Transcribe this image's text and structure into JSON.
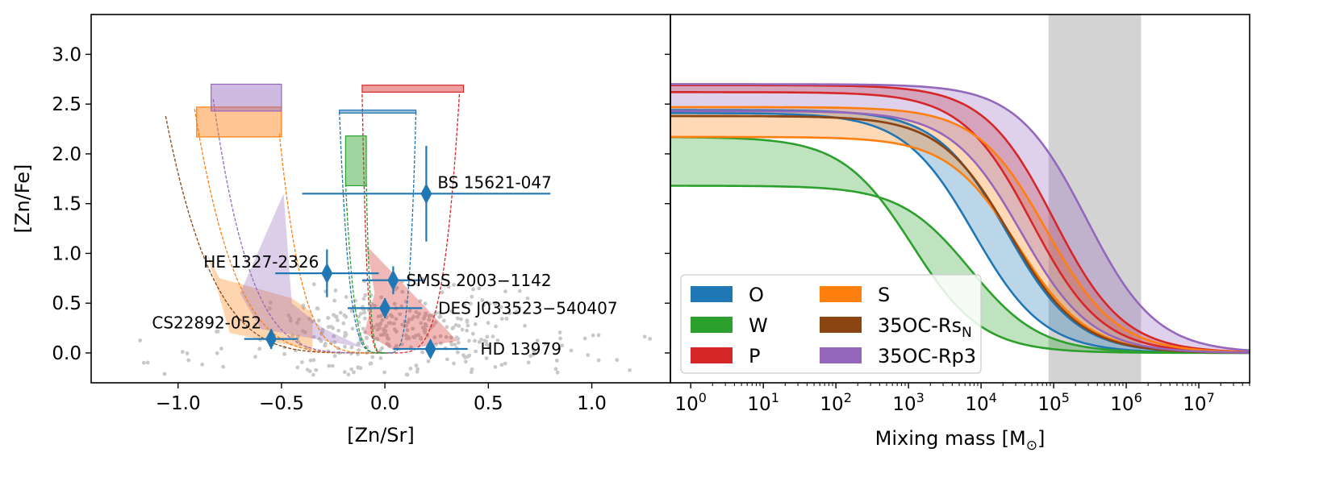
{
  "chart_data": [
    {
      "type": "scatter",
      "panel": "left",
      "xlabel": "[Zn/Sr]",
      "ylabel": "[Zn/Fe]",
      "xlim": [
        -1.42,
        1.38
      ],
      "ylim": [
        -0.3,
        3.4
      ],
      "xticks": [
        -1.0,
        -0.5,
        0.0,
        0.5,
        1.0
      ],
      "xtick_labels": [
        "−1.0",
        "−0.5",
        "0.0",
        "0.5",
        "1.0"
      ],
      "yticks": [
        0.0,
        0.5,
        1.0,
        1.5,
        2.0,
        2.5,
        3.0
      ],
      "ytick_labels": [
        "0.0",
        "0.5",
        "1.0",
        "1.5",
        "2.0",
        "2.5",
        "3.0"
      ],
      "stars": [
        {
          "name": "BS 15621-047",
          "x": 0.2,
          "y": 1.6,
          "xerr": [
            0.6,
            0.6
          ],
          "yerr": [
            0.48,
            0.48
          ]
        },
        {
          "name": "HE 1327-2326",
          "x": -0.28,
          "y": 0.8,
          "xerr": [
            0.25,
            0.25
          ],
          "yerr": [
            0.24,
            0.24
          ]
        },
        {
          "name": "SMSS 2003−1142",
          "x": 0.04,
          "y": 0.73,
          "xerr": [
            0.15,
            0.15
          ],
          "yerr": [
            0.14,
            0.14
          ]
        },
        {
          "name": "DES J033523−540407",
          "x": 0.0,
          "y": 0.45,
          "xerr": [
            0.18,
            0.18
          ],
          "yerr": [
            0.1,
            0.1
          ]
        },
        {
          "name": "CS22892-052",
          "x": -0.55,
          "y": 0.14,
          "xerr": [
            0.13,
            0.13
          ],
          "yerr": [
            0.1,
            0.1
          ]
        },
        {
          "name": "HD 13979",
          "x": 0.22,
          "y": 0.04,
          "xerr": [
            0.18,
            0.18
          ],
          "yerr": [
            0.08,
            0.08
          ]
        }
      ],
      "yield_bands": [
        {
          "model": "O",
          "x0": -0.22,
          "x1": 0.15,
          "y0": 2.41,
          "y1": 2.44
        },
        {
          "model": "W",
          "x0": -0.19,
          "x1": -0.09,
          "y0": 1.68,
          "y1": 2.18
        },
        {
          "model": "P",
          "x0": -0.11,
          "x1": 0.38,
          "y0": 2.62,
          "y1": 2.69
        },
        {
          "model": "S",
          "x0": -0.91,
          "x1": -0.5,
          "y0": 2.17,
          "y1": 2.47
        },
        {
          "model": "35OC-Rp3",
          "x0": -0.84,
          "x1": -0.5,
          "y0": 2.43,
          "y1": 2.7
        }
      ],
      "dilution_curves": [
        {
          "model": "35OC-RsN",
          "x_start": -1.06,
          "y_start": 2.38
        },
        {
          "model": "S",
          "x_start": -0.92,
          "y_start": 2.45
        },
        {
          "model": "35OC-Rp3",
          "x_start": -0.83,
          "y_start": 2.55
        },
        {
          "model": "S",
          "x_start": -0.51,
          "y_start": 2.2
        },
        {
          "model": "P",
          "x_start": -0.11,
          "y_start": 2.6
        },
        {
          "model": "P",
          "x_start": 0.36,
          "y_start": 2.6
        },
        {
          "model": "O",
          "x_start": -0.22,
          "y_start": 2.42
        },
        {
          "model": "O",
          "x_start": 0.15,
          "y_start": 2.42
        },
        {
          "model": "W",
          "x_start": -0.19,
          "y_start": 1.7
        },
        {
          "model": "W",
          "x_start": -0.09,
          "y_start": 1.7
        }
      ],
      "mixing_wedges": [
        {
          "model": "S",
          "points": [
            [
              -0.86,
              1.0
            ],
            [
              -0.8,
              0.75
            ],
            [
              -0.45,
              0.55
            ],
            [
              -0.35,
              0.4
            ],
            [
              -0.35,
              0.03
            ],
            [
              -0.75,
              0.2
            ]
          ]
        },
        {
          "model": "35OC-Rp3",
          "points": [
            [
              -0.49,
              1.6
            ],
            [
              -0.45,
              0.5
            ],
            [
              -0.3,
              0.25
            ],
            [
              -0.1,
              0.05
            ],
            [
              -0.6,
              0.24
            ],
            [
              -0.7,
              0.6
            ]
          ]
        },
        {
          "model": "P",
          "points": [
            [
              -0.09,
              1.08
            ],
            [
              0.2,
              0.45
            ],
            [
              0.35,
              0.12
            ],
            [
              0.05,
              0.02
            ],
            [
              -0.1,
              0.2
            ],
            [
              -0.05,
              0.6
            ]
          ]
        }
      ],
      "background_stars": {
        "count": 360,
        "x_range": [
          -1.3,
          1.32
        ],
        "y_range": [
          -0.22,
          1.0
        ]
      }
    },
    {
      "type": "line",
      "panel": "right",
      "xlabel": "Mixing mass [M",
      "xlabel_sub": "⊙",
      "xlabel_end": "]",
      "xscale": "log",
      "xlim_log10": [
        -0.28,
        7.7
      ],
      "ylim": [
        -0.3,
        3.4
      ],
      "xtick_exponents": [
        0,
        1,
        2,
        3,
        4,
        5,
        6,
        7
      ],
      "xtick_base": "10",
      "shaded_mass_range": [
        85000,
        1600000
      ],
      "series": [
        {
          "name": "O",
          "upper_plateau": 2.44,
          "lower_plateau": 2.41,
          "midpoint_log10_upper": 4.35,
          "midpoint_log10_lower": 3.9
        },
        {
          "name": "W",
          "upper_plateau": 2.17,
          "lower_plateau": 1.68,
          "midpoint_log10_upper": 3.05,
          "midpoint_log10_lower": 3.85
        },
        {
          "name": "P",
          "upper_plateau": 2.69,
          "lower_plateau": 2.62,
          "midpoint_log10_upper": 5.0,
          "midpoint_log10_lower": 4.7
        },
        {
          "name": "S",
          "upper_plateau": 2.47,
          "lower_plateau": 2.17,
          "midpoint_log10_upper": 4.9,
          "midpoint_log10_lower": 4.5
        },
        {
          "name": "35OC-RsN",
          "upper_plateau": 2.38,
          "lower_plateau": 2.38,
          "midpoint_log10_upper": 4.4,
          "midpoint_log10_lower": 4.4
        },
        {
          "name": "35OC-Rp3",
          "upper_plateau": 2.7,
          "lower_plateau": 2.43,
          "midpoint_log10_upper": 5.45,
          "midpoint_log10_lower": 4.55
        }
      ]
    }
  ],
  "legend": {
    "items": [
      {
        "label": "O",
        "sub": "",
        "color": "#1f77b4"
      },
      {
        "label": "W",
        "sub": "",
        "color": "#2ca02c"
      },
      {
        "label": "P",
        "sub": "",
        "color": "#d62728"
      },
      {
        "label": "S",
        "sub": "",
        "color": "#ff7f0e"
      },
      {
        "label": "35OC-Rs",
        "sub": "N",
        "color": "#8b4513"
      },
      {
        "label": "35OC-Rp3",
        "sub": "",
        "color": "#9467bd"
      }
    ]
  },
  "colors": {
    "O": "#1f77b4",
    "W": "#2ca02c",
    "P": "#d62728",
    "S": "#ff7f0e",
    "35OC-RsN": "#8b4513",
    "35OC-Rp3": "#9467bd",
    "star_marker": "#1f77b4",
    "background_star": "#c8c8c8",
    "mass_band": "#d3d3d3"
  }
}
